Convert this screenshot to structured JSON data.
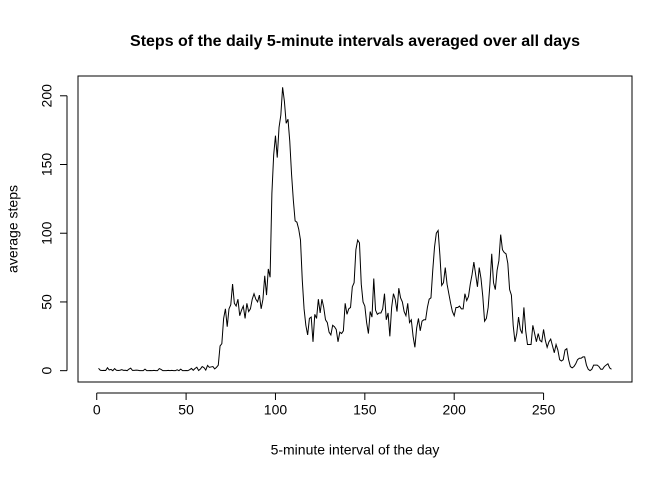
{
  "chart_data": {
    "type": "line",
    "title": "Steps of the daily 5-minute intervals averaged over all days",
    "x_label": "5-minute interval of the day",
    "y_label": "average steps",
    "color": "#000000",
    "xlim": [
      -10.48,
      299.48
    ],
    "ylim": [
      -8.25,
      214.4
    ],
    "xticks": [
      0,
      50,
      100,
      150,
      200,
      250
    ],
    "yticks": [
      0,
      50,
      100,
      150,
      200
    ],
    "x": [
      1,
      2,
      3,
      4,
      5,
      6,
      7,
      8,
      9,
      10,
      11,
      12,
      13,
      14,
      15,
      16,
      17,
      18,
      19,
      20,
      21,
      22,
      23,
      24,
      25,
      26,
      27,
      28,
      29,
      30,
      31,
      32,
      33,
      34,
      35,
      36,
      37,
      38,
      39,
      40,
      41,
      42,
      43,
      44,
      45,
      46,
      47,
      48,
      49,
      50,
      51,
      52,
      53,
      54,
      55,
      56,
      57,
      58,
      59,
      60,
      61,
      62,
      63,
      64,
      65,
      66,
      67,
      68,
      69,
      70,
      71,
      72,
      73,
      74,
      75,
      76,
      77,
      78,
      79,
      80,
      81,
      82,
      83,
      84,
      85,
      86,
      87,
      88,
      89,
      90,
      91,
      92,
      93,
      94,
      95,
      96,
      97,
      98,
      99,
      100,
      101,
      102,
      103,
      104,
      105,
      106,
      107,
      108,
      109,
      110,
      111,
      112,
      113,
      114,
      115,
      116,
      117,
      118,
      119,
      120,
      121,
      122,
      123,
      124,
      125,
      126,
      127,
      128,
      129,
      130,
      131,
      132,
      133,
      134,
      135,
      136,
      137,
      138,
      139,
      140,
      141,
      142,
      143,
      144,
      145,
      146,
      147,
      148,
      149,
      150,
      151,
      152,
      153,
      154,
      155,
      156,
      157,
      158,
      159,
      160,
      161,
      162,
      163,
      164,
      165,
      166,
      167,
      168,
      169,
      170,
      171,
      172,
      173,
      174,
      175,
      176,
      177,
      178,
      179,
      180,
      181,
      182,
      183,
      184,
      185,
      186,
      187,
      188,
      189,
      190,
      191,
      192,
      193,
      194,
      195,
      196,
      197,
      198,
      199,
      200,
      201,
      202,
      203,
      204,
      205,
      206,
      207,
      208,
      209,
      210,
      211,
      212,
      213,
      214,
      215,
      216,
      217,
      218,
      219,
      220,
      221,
      222,
      223,
      224,
      225,
      226,
      227,
      228,
      229,
      230,
      231,
      232,
      233,
      234,
      235,
      236,
      237,
      238,
      239,
      240,
      241,
      242,
      243,
      244,
      245,
      246,
      247,
      248,
      249,
      250,
      251,
      252,
      253,
      254,
      255,
      256,
      257,
      258,
      259,
      260,
      261,
      262,
      263,
      264,
      265,
      266,
      267,
      268,
      269,
      270,
      271,
      272,
      273,
      274,
      275,
      276,
      277,
      278,
      279,
      280,
      281,
      282,
      283,
      284,
      285,
      286,
      287,
      288
    ],
    "values": [
      1.7,
      0.3,
      0.1,
      0.2,
      0.1,
      2.1,
      0.5,
      0.9,
      0,
      1.5,
      0.3,
      0.1,
      0.3,
      0.7,
      0.2,
      0.3,
      0,
      1.1,
      1.8,
      0.2,
      0.2,
      0.4,
      0.3,
      0,
      0,
      0,
      1.1,
      0,
      0,
      0.1,
      0,
      0.2,
      0,
      0,
      1.5,
      0.9,
      0,
      0,
      0,
      0.2,
      0,
      0.2,
      0,
      0,
      0.6,
      0,
      1.1,
      0,
      0,
      0.1,
      0,
      0.7,
      1.6,
      0.3,
      1.6,
      2.5,
      0.1,
      1.2,
      3.0,
      2.2,
      0.4,
      3.8,
      2.4,
      2.7,
      3.0,
      1.3,
      2.4,
      4.0,
      18.0,
      19.6,
      38,
      45,
      32,
      45,
      48,
      63,
      49,
      47,
      52,
      40,
      44,
      47,
      38,
      49,
      43,
      45,
      52,
      56,
      52,
      50,
      55,
      45,
      52,
      69,
      55,
      74,
      68,
      129,
      157,
      171,
      155,
      177,
      186,
      206.2,
      196,
      180,
      183,
      167,
      143,
      124,
      109,
      108,
      103,
      95,
      66,
      45,
      33,
      26,
      38,
      39,
      21,
      41,
      38,
      52,
      42,
      52,
      46,
      37,
      35,
      28,
      26,
      33,
      32,
      30,
      21,
      28,
      27,
      29,
      49,
      41,
      45,
      46,
      61,
      64,
      88,
      95,
      93,
      63,
      50,
      47,
      35,
      27,
      43,
      39,
      67,
      44,
      41,
      42,
      42,
      45,
      56,
      37,
      42,
      25,
      46,
      56,
      52,
      43,
      60,
      53,
      50,
      43,
      40,
      49,
      35,
      37,
      25,
      17,
      31,
      38,
      29,
      36,
      37,
      37,
      46,
      52,
      53,
      73,
      90,
      100,
      102,
      84,
      62,
      64,
      75,
      63,
      56,
      49,
      43,
      40,
      46,
      46,
      47,
      45,
      45,
      56,
      51,
      54,
      63,
      70,
      79,
      70,
      61,
      75,
      67,
      54,
      36,
      38,
      46,
      63,
      85,
      64,
      59,
      73,
      80,
      99,
      88,
      86,
      85,
      78,
      59,
      55,
      33,
      21,
      27,
      39,
      30,
      27,
      46,
      29,
      19,
      19,
      19,
      33,
      27,
      21,
      27,
      22,
      21,
      30,
      22,
      17,
      21,
      23,
      18,
      13,
      19,
      15,
      8,
      7,
      8,
      15,
      16,
      8,
      3,
      2,
      3,
      5,
      8,
      9,
      9,
      10,
      10,
      4,
      1,
      0,
      1,
      4,
      4,
      4,
      3,
      1,
      1,
      3,
      4,
      5,
      2,
      1
    ]
  }
}
